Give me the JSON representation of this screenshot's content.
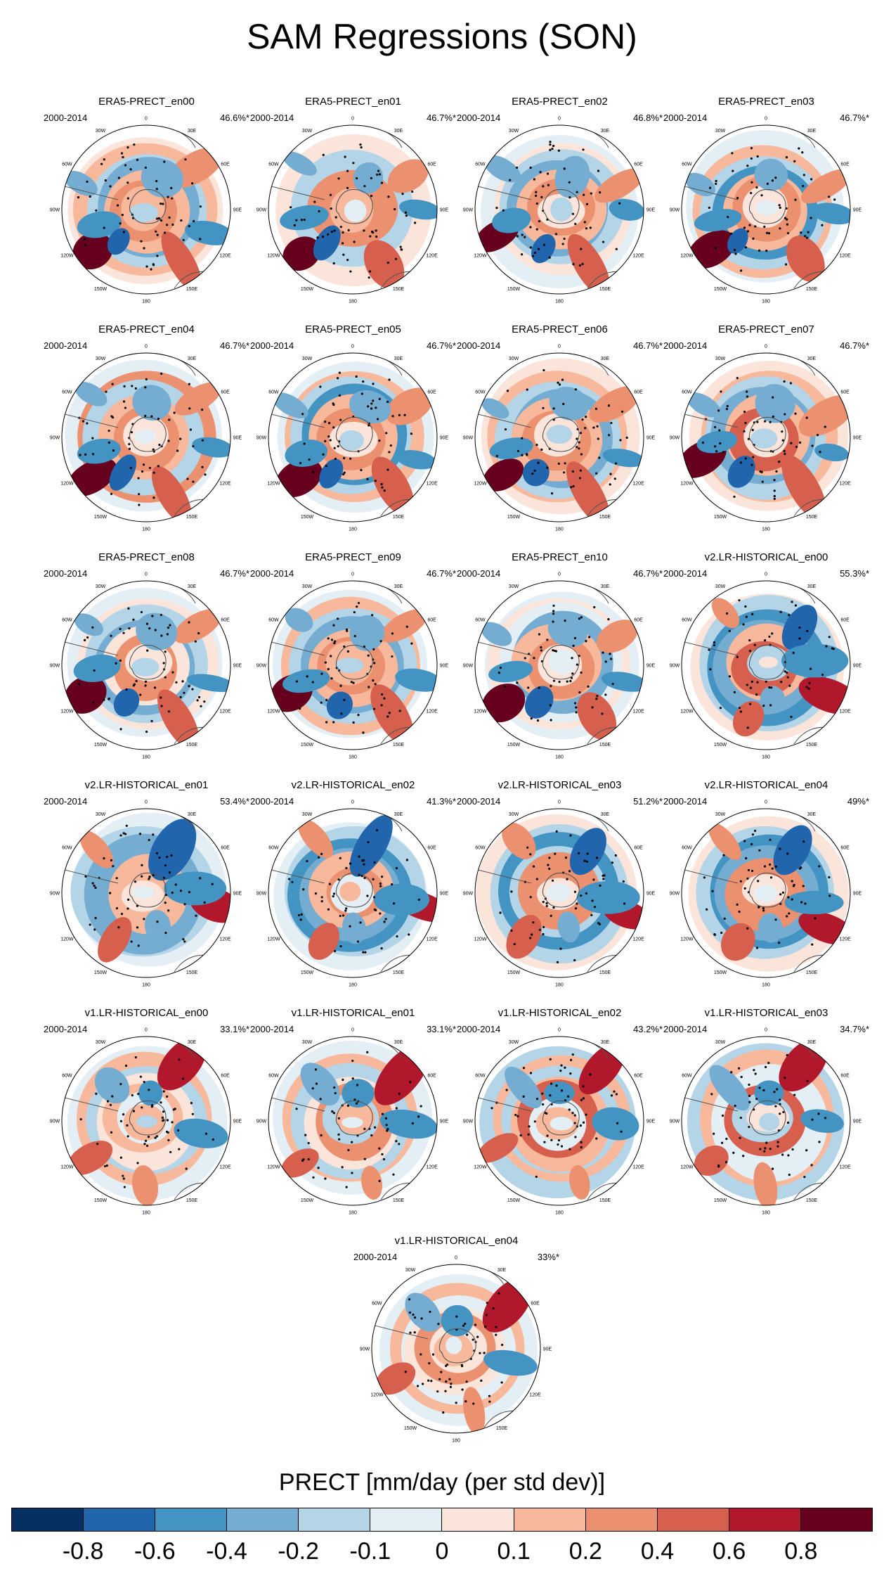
{
  "title": "SAM Regressions (SON)",
  "period": "2000-2014",
  "lon_labels": [
    "0",
    "30E",
    "60E",
    "90E",
    "120E",
    "150E",
    "180",
    "150W",
    "120W",
    "90W",
    "60W",
    "30W"
  ],
  "colors": {
    "scale": [
      "#053061",
      "#2166ac",
      "#4393c3",
      "#74add1",
      "#b4d4e7",
      "#e3eef5",
      "#fbe4da",
      "#f7b89c",
      "#ec9170",
      "#d6604d",
      "#b2182b",
      "#67001f"
    ],
    "coast": "#555555",
    "stipple": "#000000"
  },
  "panels": [
    {
      "title": "ERA5-PRECT_en00",
      "pct": "46.6%*",
      "pattern": "era5"
    },
    {
      "title": "ERA5-PRECT_en01",
      "pct": "46.7%*",
      "pattern": "era5"
    },
    {
      "title": "ERA5-PRECT_en02",
      "pct": "46.8%*",
      "pattern": "era5"
    },
    {
      "title": "ERA5-PRECT_en03",
      "pct": "46.7%*",
      "pattern": "era5"
    },
    {
      "title": "ERA5-PRECT_en04",
      "pct": "46.7%*",
      "pattern": "era5"
    },
    {
      "title": "ERA5-PRECT_en05",
      "pct": "46.7%*",
      "pattern": "era5"
    },
    {
      "title": "ERA5-PRECT_en06",
      "pct": "46.7%*",
      "pattern": "era5"
    },
    {
      "title": "ERA5-PRECT_en07",
      "pct": "46.7%*",
      "pattern": "era5"
    },
    {
      "title": "ERA5-PRECT_en08",
      "pct": "46.7%*",
      "pattern": "era5"
    },
    {
      "title": "ERA5-PRECT_en09",
      "pct": "46.7%*",
      "pattern": "era5"
    },
    {
      "title": "ERA5-PRECT_en10",
      "pct": "46.7%*",
      "pattern": "era5"
    },
    {
      "title": "v2.LR-HISTORICAL_en00",
      "pct": "55.3%*",
      "pattern": "v2"
    },
    {
      "title": "v2.LR-HISTORICAL_en01",
      "pct": "53.4%*",
      "pattern": "v2"
    },
    {
      "title": "v2.LR-HISTORICAL_en02",
      "pct": "41.3%*",
      "pattern": "v2"
    },
    {
      "title": "v2.LR-HISTORICAL_en03",
      "pct": "51.2%*",
      "pattern": "v2"
    },
    {
      "title": "v2.LR-HISTORICAL_en04",
      "pct": "49%*",
      "pattern": "v2"
    },
    {
      "title": "v1.LR-HISTORICAL_en00",
      "pct": "33.1%*",
      "pattern": "v1"
    },
    {
      "title": "v1.LR-HISTORICAL_en01",
      "pct": "33.1%*",
      "pattern": "v1"
    },
    {
      "title": "v1.LR-HISTORICAL_en02",
      "pct": "43.2%*",
      "pattern": "v1"
    },
    {
      "title": "v1.LR-HISTORICAL_en03",
      "pct": "34.7%*",
      "pattern": "v1"
    },
    {
      "title": "v1.LR-HISTORICAL_en04",
      "pct": "33%*",
      "pattern": "v1"
    }
  ],
  "colorbar": {
    "title": "PRECT [mm/day (per std dev)]",
    "labels": [
      "-0.8",
      "-0.6",
      "-0.4",
      "-0.2",
      "-0.1",
      "0",
      "0.1",
      "0.2",
      "0.4",
      "0.6",
      "0.8"
    ]
  }
}
